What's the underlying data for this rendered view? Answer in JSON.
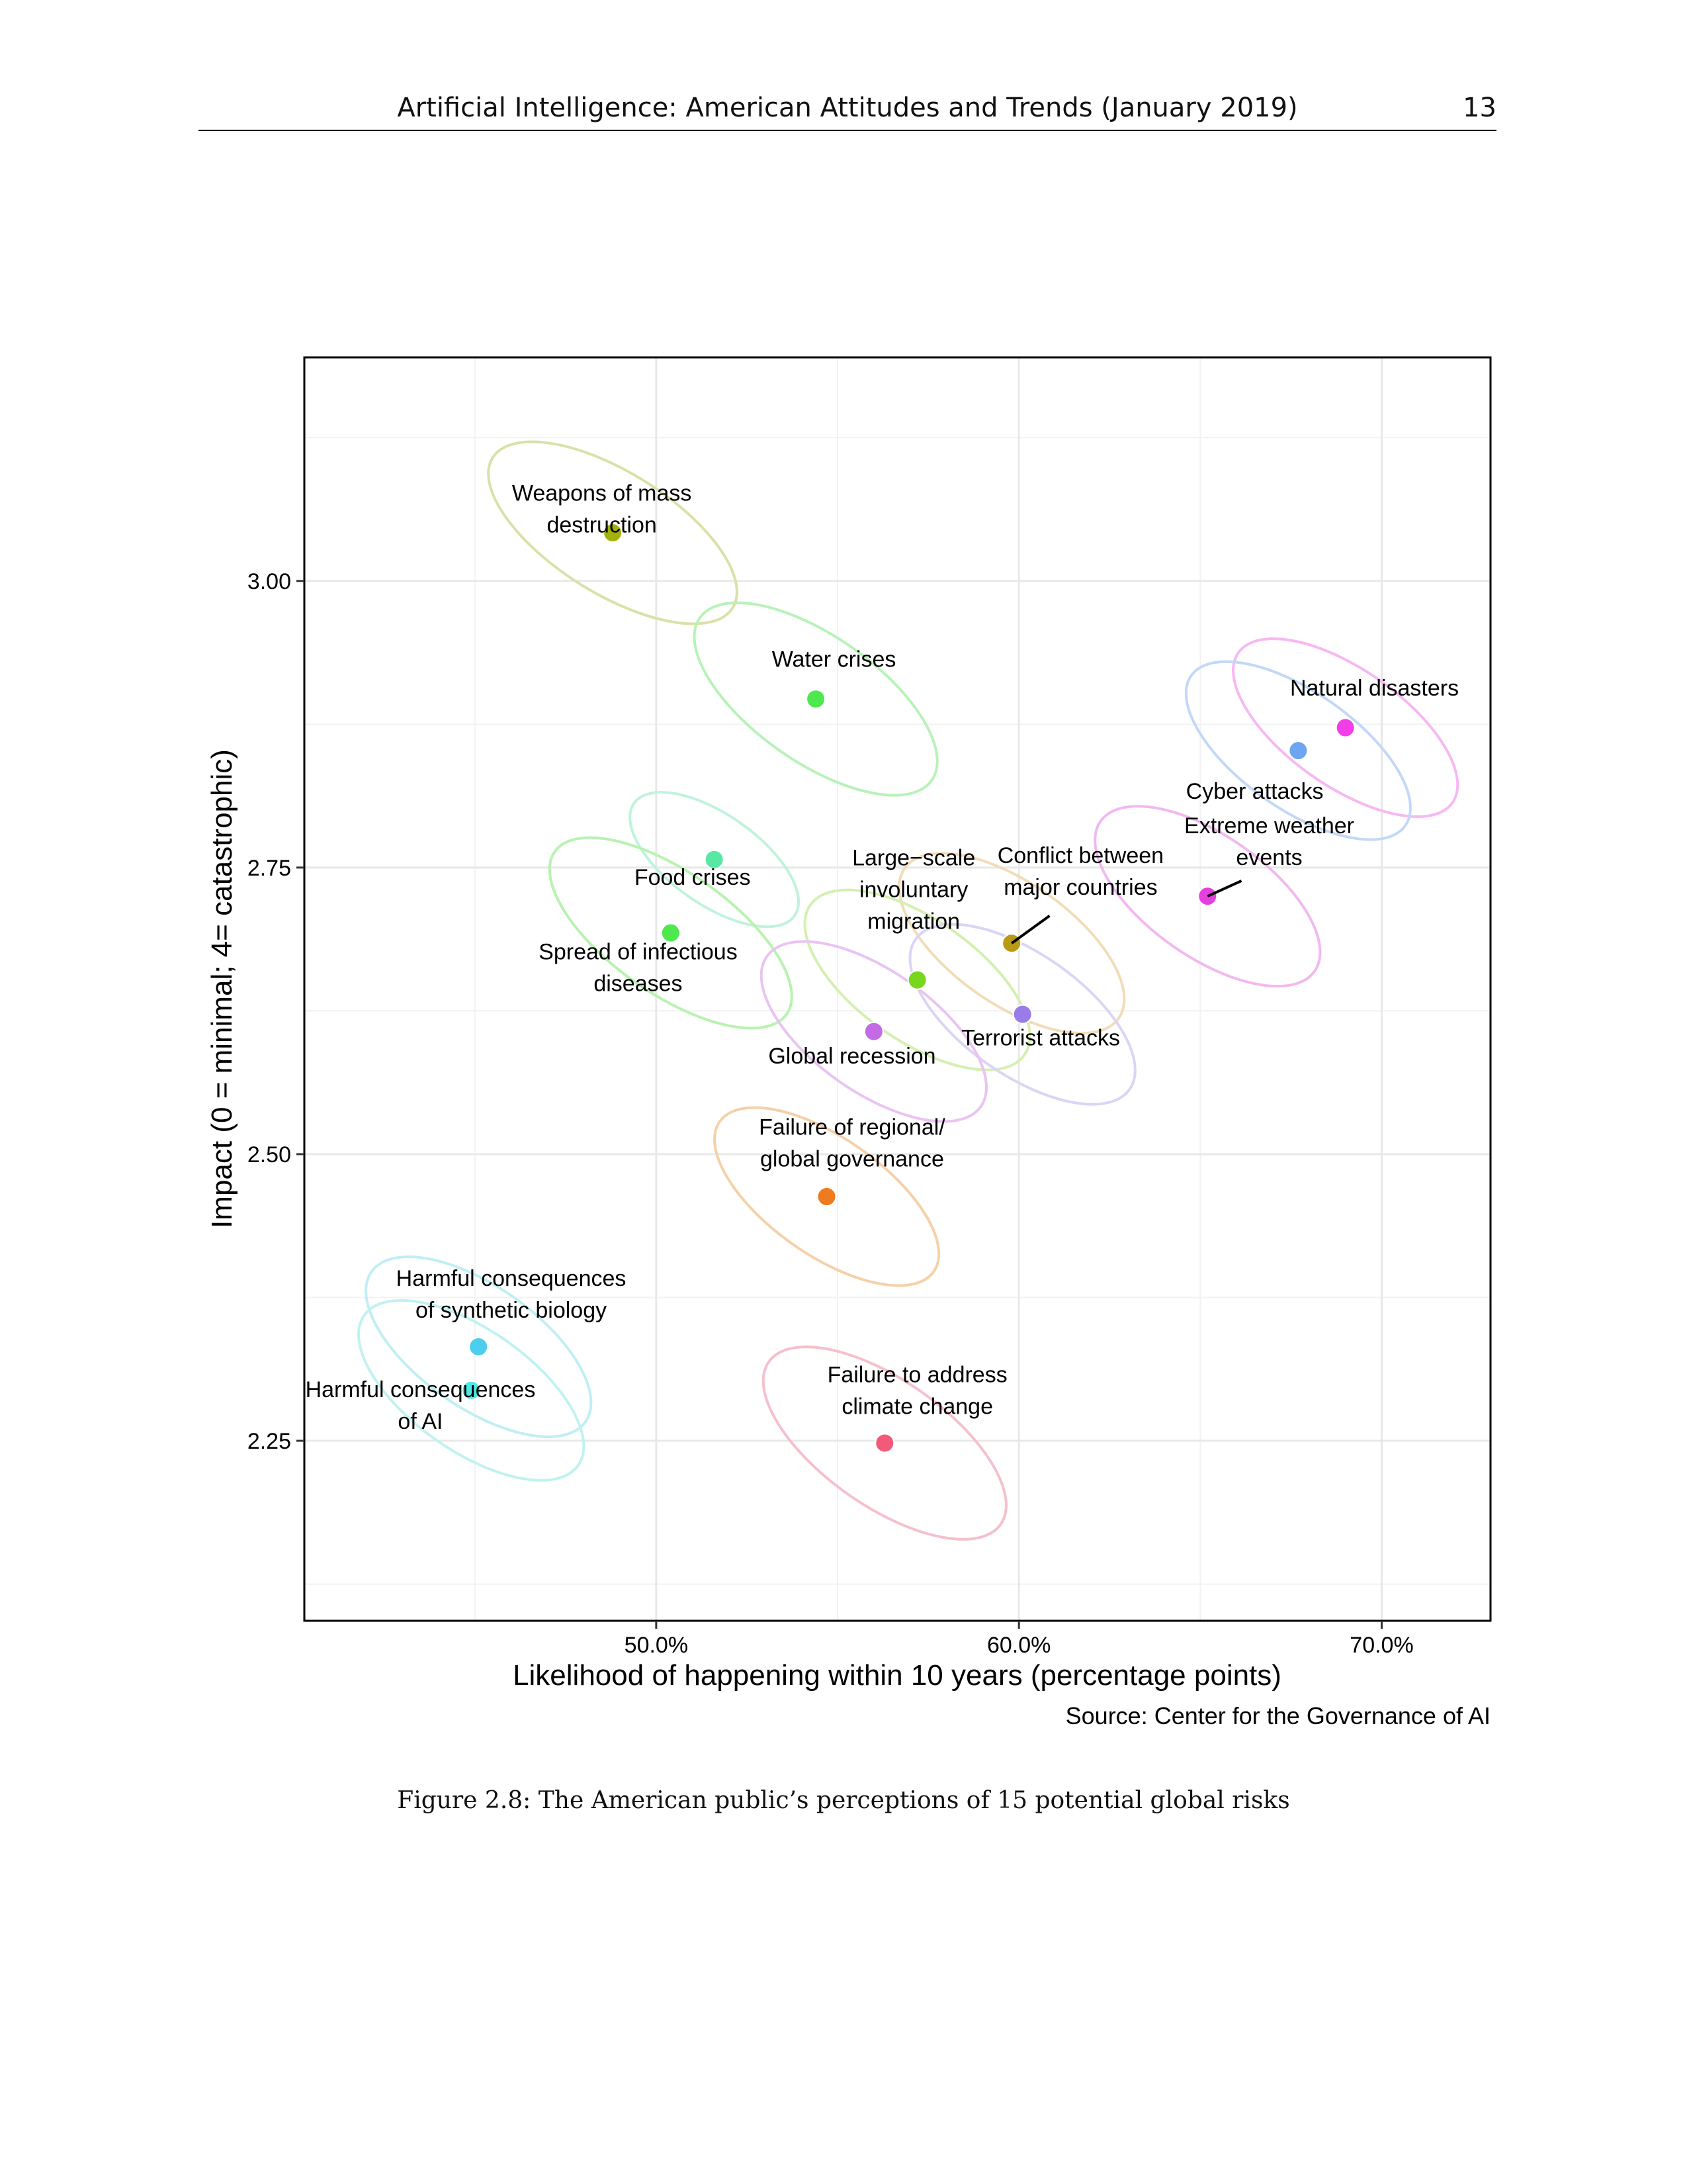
{
  "header": {
    "title": "Artificial Intelligence: American Attitudes and Trends (January 2019)",
    "page_number": "13"
  },
  "chart_data": {
    "type": "scatter",
    "title": "",
    "xlabel": "Likelihood of happening within 10 years (percentage points)",
    "ylabel": "Impact (0 = minimal; 4= catastrophic)",
    "xlim": [
      40.3,
      73.0
    ],
    "ylim": [
      2.093,
      3.195
    ],
    "x_ticks": [
      50,
      60,
      70
    ],
    "x_tick_labels": [
      "50.0%",
      "60.0%",
      "70.0%"
    ],
    "y_ticks": [
      2.25,
      2.5,
      2.75,
      3.0
    ],
    "y_tick_labels": [
      "2.25",
      "2.50",
      "2.75",
      "3.00"
    ],
    "grid": true,
    "source": "Source: Center for the Governance of AI",
    "points": [
      {
        "name": "weapons",
        "label": [
          "Weapons of mass",
          "destruction"
        ],
        "x": 48.8,
        "y": 3.042,
        "color": "#a3b10c",
        "ellipse_color": "#dbe0a8",
        "ell_dx": 2.7,
        "ell_dy": 0.13,
        "rot": -58,
        "label_x": 48.5,
        "label_y": 3.07
      },
      {
        "name": "water-crises",
        "label": [
          "Water crises"
        ],
        "x": 54.4,
        "y": 2.897,
        "color": "#4de84d",
        "ellipse_color": "#b8f2b8",
        "ell_dx": 2.8,
        "ell_dy": 0.13,
        "rot": -55,
        "label_x": 54.9,
        "label_y": 2.925
      },
      {
        "name": "natural-disasters",
        "label": [
          "Natural disasters"
        ],
        "x": 69.0,
        "y": 2.872,
        "color": "#f23de8",
        "ellipse_color": "#f7b8f2",
        "ell_dx": 2.6,
        "ell_dy": 0.12,
        "rot": -55,
        "label_x": 69.8,
        "label_y": 2.9
      },
      {
        "name": "cyber-attacks",
        "label": [
          "Cyber attacks"
        ],
        "x": 67.7,
        "y": 2.852,
        "color": "#6fa4f2",
        "ellipse_color": "#c2d8f7",
        "ell_dx": 2.6,
        "ell_dy": 0.12,
        "rot": -55,
        "label_x": 66.5,
        "label_y": 2.81
      },
      {
        "name": "food-crises",
        "label": [
          "Food crises"
        ],
        "x": 51.6,
        "y": 2.757,
        "color": "#58e8a3",
        "ellipse_color": "#c0f2dc",
        "ell_dx": 2.0,
        "ell_dy": 0.09,
        "rot": -55,
        "label_x": 51.0,
        "label_y": 2.735
      },
      {
        "name": "extreme-weather",
        "label": [
          "Extreme weather",
          "events"
        ],
        "x": 65.2,
        "y": 2.725,
        "color": "#e83de0",
        "ellipse_color": "#f2b8ef",
        "ell_dx": 2.7,
        "ell_dy": 0.12,
        "rot": -55,
        "label_x": 66.9,
        "label_y": 2.78,
        "leader": true
      },
      {
        "name": "spread-infectious",
        "label": [
          "Spread of infectious",
          "diseases"
        ],
        "x": 50.4,
        "y": 2.693,
        "color": "#4ce84c",
        "ellipse_color": "#b8f2b0",
        "ell_dx": 2.7,
        "ell_dy": 0.13,
        "rot": -55,
        "label_x": 49.5,
        "label_y": 2.67
      },
      {
        "name": "conflict",
        "label": [
          "Conflict between",
          "major countries"
        ],
        "x": 59.8,
        "y": 2.684,
        "color": "#b89a14",
        "ellipse_color": "#f2dcb8",
        "ell_dx": 2.7,
        "ell_dy": 0.12,
        "rot": -55,
        "label_x": 61.7,
        "label_y": 2.754,
        "leader": true
      },
      {
        "name": "migration",
        "label": [
          "Large−scale",
          "involuntary",
          "migration"
        ],
        "x": 57.2,
        "y": 2.652,
        "color": "#78d61e",
        "ellipse_color": "#d4f0b0",
        "ell_dx": 2.7,
        "ell_dy": 0.12,
        "rot": -55,
        "label_x": 57.1,
        "label_y": 2.752
      },
      {
        "name": "terrorist-attacks",
        "label": [
          "Terrorist attacks"
        ],
        "x": 60.1,
        "y": 2.622,
        "color": "#9a7ce8",
        "ellipse_color": "#dcd4f5",
        "ell_dx": 2.7,
        "ell_dy": 0.12,
        "rot": -55,
        "label_x": 60.6,
        "label_y": 2.595
      },
      {
        "name": "global-recession",
        "label": [
          "Global recession"
        ],
        "x": 56.0,
        "y": 2.607,
        "color": "#c46ae6",
        "ellipse_color": "#e8c4f2",
        "ell_dx": 2.7,
        "ell_dy": 0.12,
        "rot": -55,
        "label_x": 55.4,
        "label_y": 2.579
      },
      {
        "name": "regional-governance",
        "label": [
          "Failure of regional/",
          "global governance"
        ],
        "x": 54.7,
        "y": 2.463,
        "color": "#f07a1e",
        "ellipse_color": "#f5d0a8",
        "ell_dx": 2.6,
        "ell_dy": 0.12,
        "rot": -55,
        "label_x": 55.4,
        "label_y": 2.517
      },
      {
        "name": "synthetic-biology",
        "label": [
          "Harmful consequences",
          "of synthetic biology"
        ],
        "x": 45.1,
        "y": 2.332,
        "color": "#4ccfee",
        "ellipse_color": "#c0eef5",
        "ell_dx": 2.7,
        "ell_dy": 0.12,
        "rot": -55,
        "label_x": 46.0,
        "label_y": 2.385
      },
      {
        "name": "harmful-ai",
        "label": [
          "Harmful consequences",
          "of AI"
        ],
        "x": 44.9,
        "y": 2.294,
        "color": "#4ce8e4",
        "ellipse_color": "#c0f2f0",
        "ell_dx": 2.7,
        "ell_dy": 0.12,
        "rot": -55,
        "label_x": 43.5,
        "label_y": 2.288
      },
      {
        "name": "climate-change",
        "label": [
          "Failure to address",
          "climate change"
        ],
        "x": 56.3,
        "y": 2.248,
        "color": "#f25a78",
        "ellipse_color": "#f5c0cc",
        "ell_dx": 2.8,
        "ell_dy": 0.13,
        "rot": -55,
        "label_x": 57.2,
        "label_y": 2.301
      }
    ]
  },
  "caption": "Figure 2.8: The American public’s perceptions of 15 potential global risks"
}
